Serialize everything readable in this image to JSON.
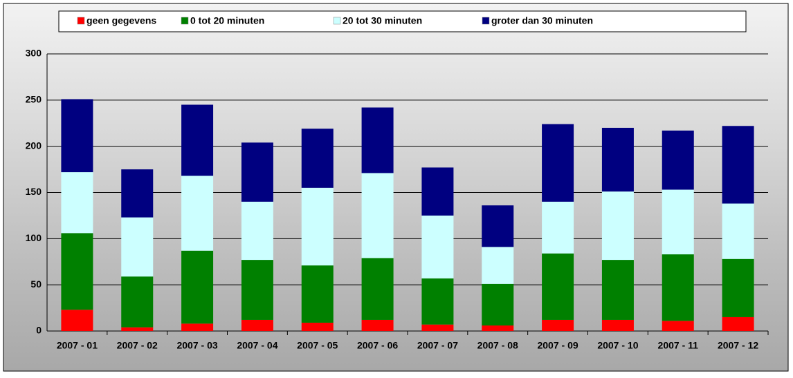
{
  "chart_data": {
    "type": "stacked-bar",
    "categories": [
      "2007 - 01",
      "2007 - 02",
      "2007 - 03",
      "2007 - 04",
      "2007 - 05",
      "2007 - 06",
      "2007 - 07",
      "2007 - 08",
      "2007 - 09",
      "2007 - 10",
      "2007 - 11",
      "2007 - 12"
    ],
    "series": [
      {
        "name": "geen gegevens",
        "color": "#ff0000",
        "values": [
          23,
          4,
          8,
          12,
          9,
          12,
          7,
          6,
          12,
          12,
          11,
          15
        ]
      },
      {
        "name": "0 tot 20 minuten",
        "color": "#008000",
        "values": [
          83,
          55,
          79,
          65,
          62,
          67,
          50,
          45,
          72,
          65,
          72,
          63
        ]
      },
      {
        "name": "20 tot 30 minuten",
        "color": "#ccffff",
        "values": [
          66,
          64,
          81,
          63,
          84,
          92,
          68,
          40,
          56,
          74,
          70,
          60
        ]
      },
      {
        "name": "groter dan 30 minuten",
        "color": "#000080",
        "values": [
          79,
          52,
          77,
          64,
          64,
          71,
          52,
          45,
          84,
          69,
          64,
          84
        ]
      }
    ],
    "ylim": [
      0,
      300
    ],
    "yticks": [
      0,
      50,
      100,
      150,
      200,
      250,
      300
    ],
    "grid": true
  }
}
